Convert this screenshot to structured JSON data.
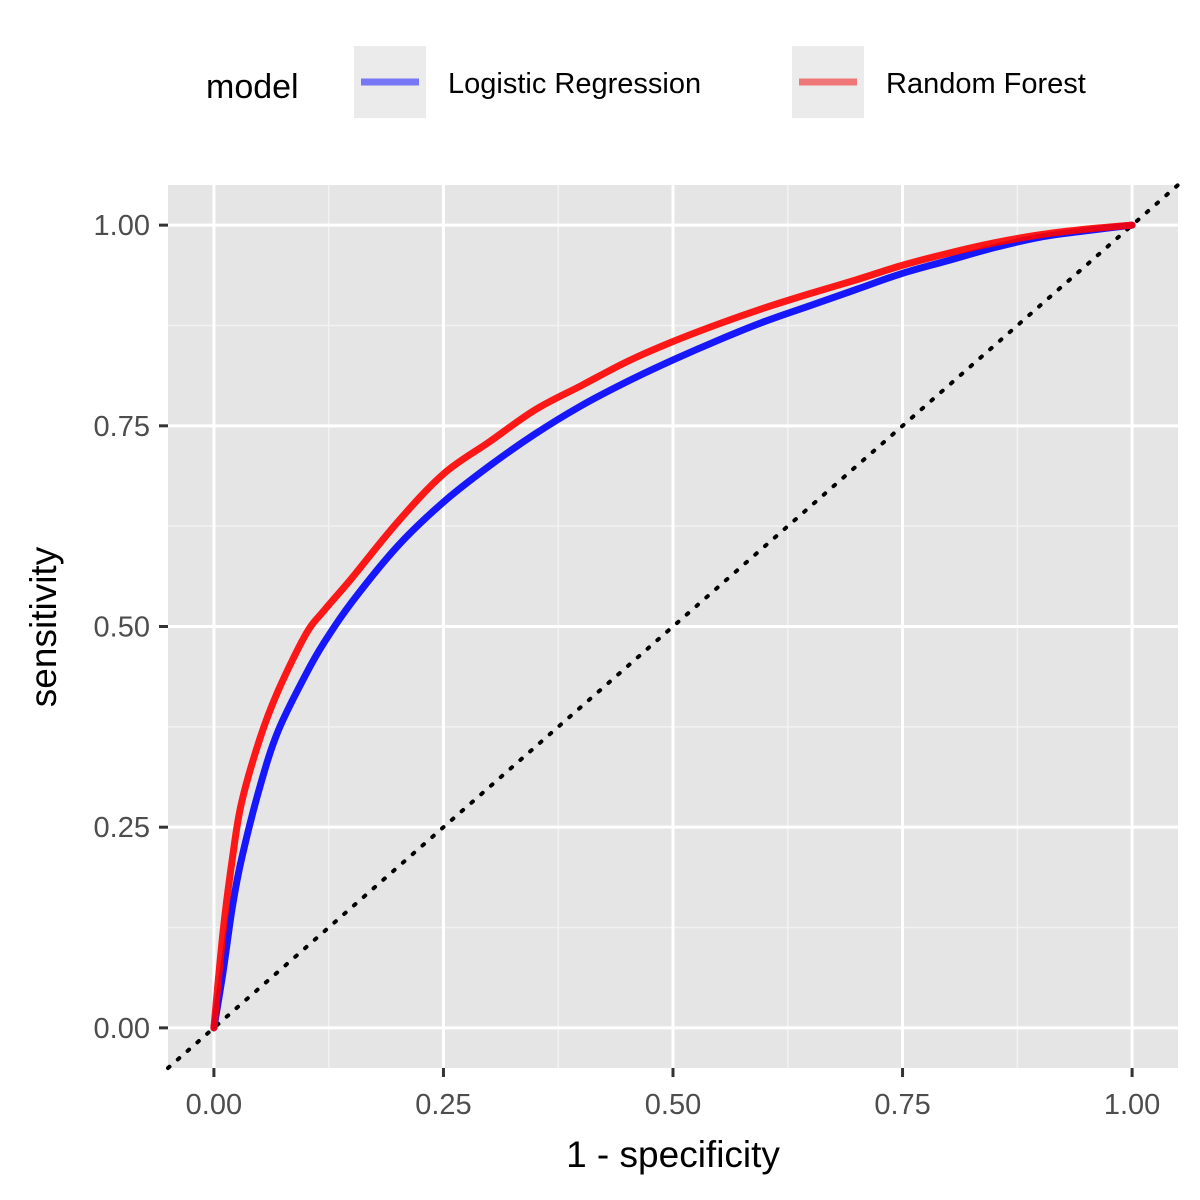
{
  "legend": {
    "title": "model",
    "items": [
      {
        "label": "Logistic Regression",
        "color": "#0000ff"
      },
      {
        "label": "Random Forest",
        "color": "#ff0000"
      }
    ]
  },
  "chart_data": {
    "type": "line",
    "xlabel": "1 - specificity",
    "ylabel": "sensitivity",
    "xlim": [
      -0.05,
      1.05
    ],
    "ylim": [
      -0.05,
      1.05
    ],
    "xticks": [
      "0.00",
      "0.25",
      "0.50",
      "0.75",
      "1.00"
    ],
    "yticks": [
      "0.00",
      "0.25",
      "0.50",
      "0.75",
      "1.00"
    ],
    "grid": true,
    "panel_background": "#e5e5e5",
    "legend_position": "top",
    "reference_line": {
      "style": "dotted",
      "color": "#000000",
      "from": [
        -0.05,
        -0.05
      ],
      "to": [
        1.05,
        1.05
      ]
    },
    "series": [
      {
        "name": "Logistic Regression",
        "color": "#0000ff",
        "x": [
          0,
          0.01,
          0.02,
          0.03,
          0.05,
          0.07,
          0.1,
          0.12,
          0.15,
          0.2,
          0.25,
          0.3,
          0.35,
          0.4,
          0.45,
          0.5,
          0.55,
          0.6,
          0.65,
          0.7,
          0.75,
          0.8,
          0.85,
          0.9,
          0.95,
          1.0
        ],
        "y": [
          0,
          0.07,
          0.15,
          0.21,
          0.3,
          0.37,
          0.44,
          0.48,
          0.53,
          0.6,
          0.655,
          0.7,
          0.74,
          0.775,
          0.805,
          0.832,
          0.857,
          0.88,
          0.9,
          0.92,
          0.94,
          0.956,
          0.972,
          0.985,
          0.993,
          1.0
        ]
      },
      {
        "name": "Random Forest",
        "color": "#ff0000",
        "x": [
          0,
          0.01,
          0.02,
          0.03,
          0.05,
          0.07,
          0.1,
          0.12,
          0.15,
          0.2,
          0.25,
          0.3,
          0.35,
          0.4,
          0.45,
          0.5,
          0.55,
          0.6,
          0.65,
          0.7,
          0.75,
          0.8,
          0.85,
          0.9,
          0.95,
          1.0
        ],
        "y": [
          0,
          0.12,
          0.21,
          0.28,
          0.36,
          0.42,
          0.49,
          0.52,
          0.56,
          0.63,
          0.69,
          0.73,
          0.77,
          0.8,
          0.83,
          0.855,
          0.877,
          0.897,
          0.915,
          0.932,
          0.95,
          0.965,
          0.978,
          0.988,
          0.995,
          1.0
        ]
      }
    ]
  }
}
